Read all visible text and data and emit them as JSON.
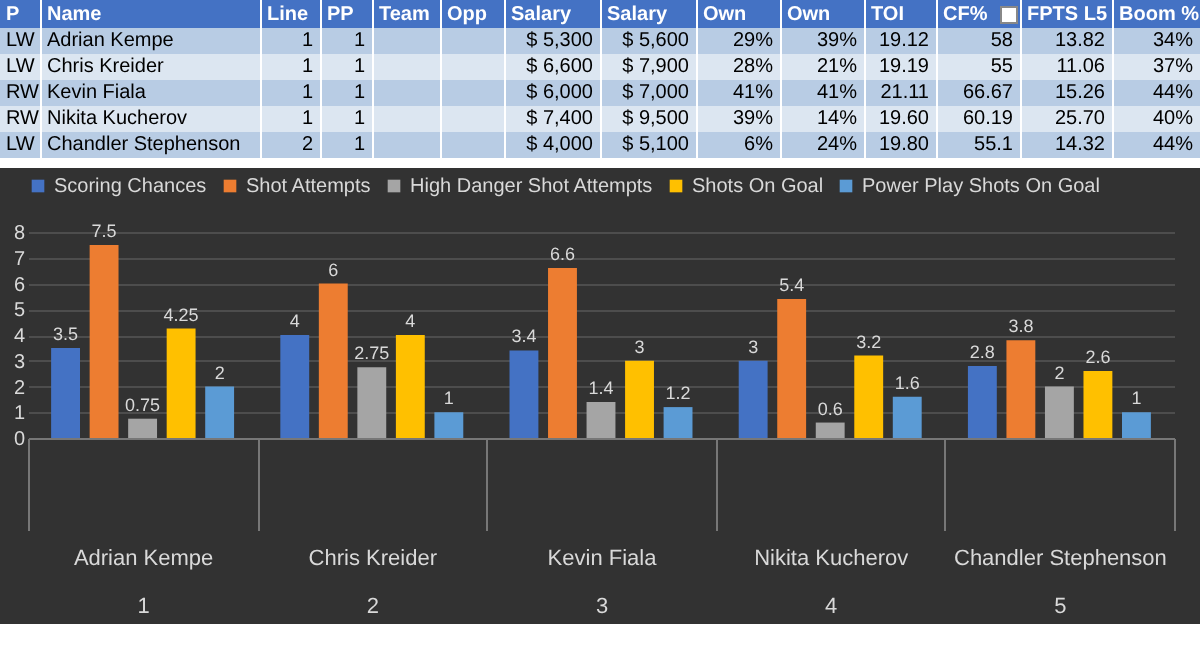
{
  "chart_data": [
    {
      "type": "other",
      "categories": [
        "P",
        "Name",
        "Line",
        "PP",
        "Team",
        "Opp",
        "Salary",
        "Salary",
        "Own",
        "Own",
        "TOI",
        "CF%",
        "FPTS L5",
        "Boom %"
      ],
      "cell_labels": [
        [
          "LW",
          "Adrian Kempe",
          "1",
          "1",
          null,
          null,
          "$ 5,300",
          "$ 5,600",
          "29%",
          "39%",
          "19.12",
          "58",
          "13.82",
          "34%"
        ],
        [
          "LW",
          "Chris Kreider",
          "1",
          "1",
          null,
          null,
          "$ 6,600",
          "$ 7,900",
          "28%",
          "21%",
          "19.19",
          "55",
          "11.06",
          "37%"
        ],
        [
          "RW",
          "Kevin Fiala",
          "1",
          "1",
          null,
          null,
          "$ 6,000",
          "$ 7,000",
          "41%",
          "41%",
          "21.11",
          "66.67",
          "15.26",
          "44%"
        ],
        [
          "RW",
          "Nikita Kucherov",
          "1",
          "1",
          null,
          null,
          "$ 7,400",
          "$ 9,500",
          "39%",
          "14%",
          "19.60",
          "60.19",
          "25.70",
          "40%"
        ],
        [
          "LW",
          "Chandler Stephenson",
          "2",
          "1",
          null,
          null,
          "$ 4,000",
          "$ 5,100",
          "6%",
          "24%",
          "19.80",
          "55.1",
          "14.32",
          "44%"
        ]
      ]
    },
    {
      "type": "bar",
      "categories": [
        "Adrian Kempe\n1",
        "Chris Kreider\n2",
        "Kevin Fiala\n3",
        "Nikita Kucherov\n4",
        "Chandler Stephenson\n5"
      ],
      "series": [
        {
          "name": "Scoring Chances",
          "color": "#4472c4",
          "values": [
            3.5,
            4,
            3.4,
            3,
            2.8
          ]
        },
        {
          "name": "Shot Attempts",
          "color": "#ed7d31",
          "values": [
            7.5,
            6,
            6.6,
            5.4,
            3.8
          ]
        },
        {
          "name": "High Danger Shot Attempts",
          "color": "#a5a5a5",
          "values": [
            0.75,
            2.75,
            1.4,
            0.6,
            2
          ]
        },
        {
          "name": "Shots On Goal",
          "color": "#ffc000",
          "values": [
            4.25,
            4,
            3,
            3.2,
            2.6
          ]
        },
        {
          "name": "Power Play Shots On Goal",
          "color": "#5b9bd5",
          "values": [
            2,
            1,
            1.2,
            1.6,
            1
          ]
        }
      ],
      "ylim": [
        0,
        8
      ],
      "yticks": [
        0,
        1,
        2,
        3,
        4,
        5,
        6,
        7,
        8
      ],
      "grid": "y",
      "legend": "top",
      "data_labels": true
    }
  ]
}
